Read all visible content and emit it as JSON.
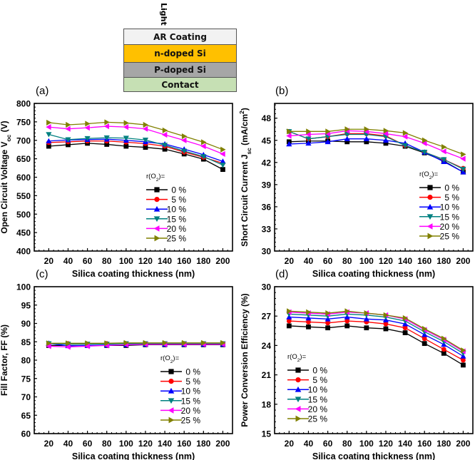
{
  "diagram": {
    "light_label": "Light",
    "layers": [
      {
        "label": "AR Coating",
        "color": "#f2f2f2"
      },
      {
        "label": "n-doped Si",
        "color": "#ffc000"
      },
      {
        "label": "P-doped Si",
        "color": "#a6a6a6"
      },
      {
        "label": "Contact",
        "color": "#c6e0b4"
      }
    ],
    "arrow_color": "#ff2000"
  },
  "chart_data": [
    {
      "type": "line",
      "panel_label": "(a)",
      "xlabel": "Silica coating thickness (nm)",
      "ylabel": [
        {
          "t": "Open Circuit Voltage V"
        },
        {
          "t": "oc",
          "sub": true
        },
        {
          "t": " (V)"
        }
      ],
      "xlim": [
        5,
        210
      ],
      "ylim": [
        400,
        800
      ],
      "xticks": [
        20,
        40,
        60,
        80,
        100,
        120,
        140,
        160,
        180,
        200
      ],
      "yticks": [
        400,
        450,
        500,
        550,
        600,
        650,
        700,
        750,
        800
      ],
      "x": [
        20,
        40,
        60,
        80,
        100,
        120,
        140,
        160,
        180,
        200
      ],
      "legend_title": [
        {
          "t": "r(O"
        },
        {
          "t": "2",
          "sub": true
        },
        {
          "t": ")="
        }
      ],
      "legend_position": "center-right",
      "series": [
        {
          "name": "0 %",
          "values": [
            684,
            688,
            692,
            689,
            684,
            681,
            676,
            663,
            649,
            621
          ]
        },
        {
          "name": "5 %",
          "values": [
            694,
            696,
            698,
            698,
            695,
            691,
            684,
            668,
            654,
            638
          ]
        },
        {
          "name": "10 %",
          "values": [
            698,
            701,
            702,
            703,
            700,
            696,
            690,
            676,
            661,
            643
          ]
        },
        {
          "name": "15 %",
          "values": [
            716,
            702,
            705,
            707,
            706,
            701,
            687,
            671,
            656,
            633
          ]
        },
        {
          "name": "20 %",
          "values": [
            736,
            731,
            734,
            738,
            736,
            731,
            715,
            700,
            684,
            663
          ]
        },
        {
          "name": "25 %",
          "values": [
            748,
            742,
            745,
            749,
            747,
            742,
            727,
            711,
            695,
            675
          ]
        }
      ]
    },
    {
      "type": "line",
      "panel_label": "(b)",
      "xlabel": "Silica coating thickness (nm)",
      "ylabel": [
        {
          "t": "Short Circuit Current J"
        },
        {
          "t": "sc",
          "sub": true
        },
        {
          "t": " (mA/cm"
        },
        {
          "t": "2",
          "sup": true
        },
        {
          "t": ")"
        }
      ],
      "xlim": [
        5,
        210
      ],
      "ylim": [
        30,
        50
      ],
      "xticks": [
        20,
        40,
        60,
        80,
        100,
        120,
        140,
        160,
        180,
        200
      ],
      "yticks": [
        30,
        33,
        36,
        39,
        42,
        45,
        48
      ],
      "x": [
        20,
        40,
        60,
        80,
        100,
        120,
        140,
        160,
        180,
        200
      ],
      "legend_title": [
        {
          "t": "r(O"
        },
        {
          "t": "2",
          "sub": true
        },
        {
          "t": ")="
        }
      ],
      "legend_position": "center-right",
      "series": [
        {
          "name": "0 %",
          "values": [
            44.8,
            44.9,
            44.9,
            44.8,
            44.8,
            44.6,
            44.2,
            43.3,
            42.2,
            40.7
          ]
        },
        {
          "name": "5 %",
          "values": [
            46.2,
            45.2,
            45.5,
            45.9,
            45.9,
            45.6,
            44.3,
            43.4,
            42.4,
            41.2
          ]
        },
        {
          "name": "10 %",
          "values": [
            44.5,
            44.6,
            44.8,
            45.2,
            45.2,
            45.0,
            44.6,
            43.4,
            42.1,
            40.7
          ]
        },
        {
          "name": "15 %",
          "values": [
            46.2,
            45.2,
            45.5,
            45.8,
            45.8,
            45.5,
            44.3,
            43.4,
            42.4,
            41.1
          ]
        },
        {
          "name": "20 %",
          "values": [
            45.6,
            45.8,
            45.9,
            46.3,
            46.2,
            45.9,
            45.5,
            44.6,
            43.5,
            42.5
          ]
        },
        {
          "name": "25 %",
          "values": [
            46.2,
            46.2,
            46.2,
            46.5,
            46.5,
            46.3,
            46.0,
            45.0,
            44.1,
            43.1
          ]
        }
      ]
    },
    {
      "type": "line",
      "panel_label": "(c)",
      "xlabel": "Silica coating thickness (nm)",
      "ylabel": [
        {
          "t": "Fill Factor, FF (%)"
        }
      ],
      "xlim": [
        5,
        210
      ],
      "ylim": [
        60,
        100
      ],
      "xticks": [
        20,
        40,
        60,
        80,
        100,
        120,
        140,
        160,
        180,
        200
      ],
      "yticks": [
        60,
        65,
        70,
        75,
        80,
        85,
        90,
        95,
        100
      ],
      "x": [
        20,
        40,
        60,
        80,
        100,
        120,
        140,
        160,
        180,
        200
      ],
      "legend_title": [
        {
          "t": "r(O"
        },
        {
          "t": "2",
          "sub": true
        },
        {
          "t": ")="
        }
      ],
      "legend_position": "center-right",
      "series": [
        {
          "name": "0 %",
          "values": [
            84.0,
            84.0,
            84.0,
            84.0,
            84.0,
            84.2,
            84.2,
            84.2,
            84.2,
            84.2
          ]
        },
        {
          "name": "5 %",
          "values": [
            84.5,
            84.5,
            84.4,
            84.5,
            84.5,
            84.5,
            84.5,
            84.5,
            84.5,
            84.5
          ]
        },
        {
          "name": "10 %",
          "values": [
            84.6,
            83.9,
            84.0,
            84.1,
            84.2,
            84.3,
            84.3,
            84.3,
            84.3,
            84.3
          ]
        },
        {
          "name": "15 %",
          "values": [
            84.5,
            84.4,
            84.4,
            84.4,
            84.5,
            84.5,
            84.5,
            84.5,
            84.5,
            84.5
          ]
        },
        {
          "name": "20 %",
          "values": [
            83.8,
            83.6,
            83.8,
            84.0,
            84.2,
            84.3,
            84.3,
            84.3,
            84.3,
            84.3
          ]
        },
        {
          "name": "25 %",
          "values": [
            84.6,
            84.6,
            84.6,
            84.6,
            84.7,
            84.7,
            84.7,
            84.7,
            84.7,
            84.7
          ]
        }
      ]
    },
    {
      "type": "line",
      "panel_label": "(d)",
      "xlabel": "Silica coating thickness (nm)",
      "ylabel": [
        {
          "t": "Power Conversion Efficiency (%)"
        }
      ],
      "xlim": [
        5,
        210
      ],
      "ylim": [
        15,
        30
      ],
      "xticks": [
        20,
        40,
        60,
        80,
        100,
        120,
        140,
        160,
        180,
        200
      ],
      "yticks": [
        15,
        18,
        21,
        24,
        27,
        30
      ],
      "x": [
        20,
        40,
        60,
        80,
        100,
        120,
        140,
        160,
        180,
        200
      ],
      "legend_title": [
        {
          "t": "r(O"
        },
        {
          "t": "2",
          "sub": true
        },
        {
          "t": ")="
        }
      ],
      "legend_position": "center-left",
      "series": [
        {
          "name": "0 %",
          "values": [
            26.0,
            25.9,
            25.8,
            26.0,
            25.8,
            25.7,
            25.3,
            24.2,
            23.2,
            22.0
          ]
        },
        {
          "name": "5 %",
          "values": [
            26.5,
            26.4,
            26.3,
            26.5,
            26.4,
            26.2,
            25.8,
            24.7,
            23.6,
            22.5
          ]
        },
        {
          "name": "10 %",
          "values": [
            26.9,
            26.8,
            26.7,
            26.9,
            26.7,
            26.6,
            26.2,
            25.1,
            24.1,
            22.9
          ]
        },
        {
          "name": "15 %",
          "values": [
            27.2,
            27.1,
            27.0,
            27.2,
            27.1,
            26.9,
            26.5,
            25.4,
            24.4,
            23.2
          ]
        },
        {
          "name": "20 %",
          "values": [
            27.4,
            27.3,
            27.2,
            27.4,
            27.3,
            27.1,
            26.7,
            25.6,
            24.6,
            23.4
          ]
        },
        {
          "name": "25 %",
          "values": [
            27.5,
            27.4,
            27.3,
            27.5,
            27.3,
            27.1,
            26.8,
            25.7,
            24.7,
            23.5
          ]
        }
      ]
    }
  ],
  "series_styles": [
    {
      "color": "#000000",
      "marker": "square"
    },
    {
      "color": "#ff0000",
      "marker": "circle"
    },
    {
      "color": "#0000ff",
      "marker": "triangle-up"
    },
    {
      "color": "#008080",
      "marker": "triangle-down"
    },
    {
      "color": "#ff00ff",
      "marker": "triangle-left"
    },
    {
      "color": "#808000",
      "marker": "triangle-right"
    }
  ]
}
